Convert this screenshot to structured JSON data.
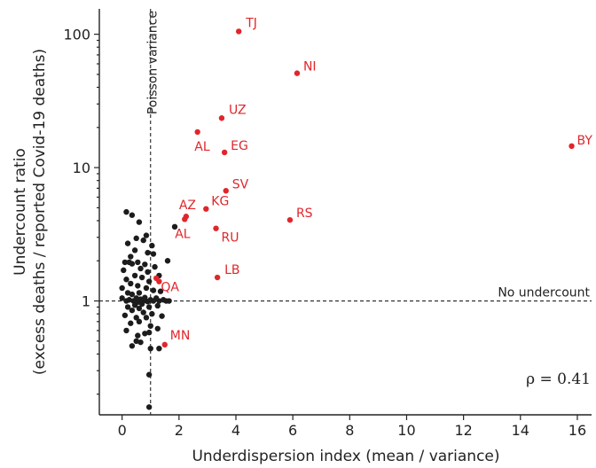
{
  "chart_data": {
    "type": "scatter",
    "xlabel": "Underdispersion index (mean / variance)",
    "ylabel": [
      "Undercount ratio",
      "(excess deaths / reported Covid-19 deaths)"
    ],
    "xlim": [
      -0.8,
      16.5
    ],
    "ylim": [
      0.14,
      155
    ],
    "yscale": "log",
    "xticks": [
      0,
      2,
      4,
      6,
      8,
      10,
      12,
      14,
      16
    ],
    "yticks": [
      1,
      10,
      100
    ],
    "grid": false,
    "colors": {
      "highlight": "#e0262b",
      "regular": "#1c1c1c"
    },
    "reference_lines": [
      {
        "orientation": "vertical",
        "value": 1,
        "label": "Poisson variance"
      },
      {
        "orientation": "horizontal",
        "value": 1,
        "label": "No undercount"
      }
    ],
    "annotation": "ρ = 0.41",
    "labeled_points": [
      {
        "label": "TJ",
        "x": 4.1,
        "y": 105
      },
      {
        "label": "NI",
        "x": 6.15,
        "y": 51
      },
      {
        "label": "UZ",
        "x": 3.5,
        "y": 23.5
      },
      {
        "label": "AL",
        "x": 2.65,
        "y": 18.5
      },
      {
        "label": "EG",
        "x": 3.6,
        "y": 13
      },
      {
        "label": "BY",
        "x": 15.8,
        "y": 14.5
      },
      {
        "label": "SV",
        "x": 3.65,
        "y": 6.7
      },
      {
        "label": "KG",
        "x": 2.95,
        "y": 4.9
      },
      {
        "label": "AZ",
        "x": 2.25,
        "y": 4.3
      },
      {
        "label": "AL",
        "x": 2.2,
        "y": 4.1
      },
      {
        "label": "RU",
        "x": 3.3,
        "y": 3.5
      },
      {
        "label": "RS",
        "x": 5.9,
        "y": 4.05
      },
      {
        "label": "LB",
        "x": 3.35,
        "y": 1.5
      },
      {
        "label": "QA",
        "x": 1.3,
        "y": 1.4
      },
      {
        "label": "MN",
        "x": 1.5,
        "y": 0.47
      }
    ],
    "other_highlight_points": [
      {
        "x": 1.2,
        "y": 1.48
      }
    ],
    "points": [
      [
        0.15,
        4.65
      ],
      [
        0.35,
        4.4
      ],
      [
        1.85,
        3.6
      ],
      [
        0.6,
        3.9
      ],
      [
        0.85,
        3.1
      ],
      [
        0.5,
        2.95
      ],
      [
        0.75,
        2.85
      ],
      [
        0.2,
        2.7
      ],
      [
        1.05,
        2.6
      ],
      [
        0.45,
        2.4
      ],
      [
        0.9,
        2.3
      ],
      [
        1.1,
        2.25
      ],
      [
        0.3,
        2.15
      ],
      [
        1.6,
        2.0
      ],
      [
        0.1,
        1.95
      ],
      [
        0.25,
        1.95
      ],
      [
        0.55,
        1.95
      ],
      [
        0.35,
        1.9
      ],
      [
        0.8,
        1.88
      ],
      [
        1.15,
        1.8
      ],
      [
        0.65,
        1.75
      ],
      [
        0.05,
        1.7
      ],
      [
        0.9,
        1.65
      ],
      [
        0.45,
        1.55
      ],
      [
        1.3,
        1.55
      ],
      [
        0.15,
        1.45
      ],
      [
        0.7,
        1.5
      ],
      [
        0.95,
        1.4
      ],
      [
        0.3,
        1.35
      ],
      [
        0.55,
        1.3
      ],
      [
        0.0,
        1.25
      ],
      [
        0.85,
        1.25
      ],
      [
        1.1,
        1.2
      ],
      [
        0.2,
        1.15
      ],
      [
        0.6,
        1.15
      ],
      [
        0.35,
        1.12
      ],
      [
        1.35,
        1.18
      ],
      [
        0.0,
        1.05
      ],
      [
        0.15,
        1.0
      ],
      [
        0.25,
        1.02
      ],
      [
        0.4,
        1.0
      ],
      [
        0.5,
        1.05
      ],
      [
        0.55,
        0.98
      ],
      [
        0.65,
        1.03
      ],
      [
        0.75,
        1.0
      ],
      [
        0.8,
        1.06
      ],
      [
        0.9,
        0.99
      ],
      [
        1.0,
        1.02
      ],
      [
        1.1,
        1.0
      ],
      [
        1.2,
        1.05
      ],
      [
        1.3,
        1.0
      ],
      [
        1.45,
        1.02
      ],
      [
        0.7,
        0.95
      ],
      [
        0.45,
        0.93
      ],
      [
        1.55,
        1.0
      ],
      [
        0.2,
        0.9
      ],
      [
        0.6,
        0.88
      ],
      [
        0.95,
        0.9
      ],
      [
        1.25,
        0.92
      ],
      [
        1.65,
        1.0
      ],
      [
        0.35,
        0.85
      ],
      [
        0.75,
        0.82
      ],
      [
        1.05,
        0.8
      ],
      [
        0.1,
        0.78
      ],
      [
        0.5,
        0.75
      ],
      [
        0.85,
        0.75
      ],
      [
        1.4,
        0.77
      ],
      [
        0.6,
        0.7
      ],
      [
        0.3,
        0.68
      ],
      [
        1.0,
        0.65
      ],
      [
        1.25,
        0.62
      ],
      [
        0.15,
        0.6
      ],
      [
        0.55,
        0.55
      ],
      [
        0.8,
        0.57
      ],
      [
        0.95,
        0.58
      ],
      [
        0.5,
        0.5
      ],
      [
        0.65,
        0.49
      ],
      [
        0.35,
        0.46
      ],
      [
        1.0,
        0.44
      ],
      [
        1.3,
        0.44
      ],
      [
        0.95,
        0.28
      ],
      [
        0.95,
        0.16
      ]
    ]
  }
}
